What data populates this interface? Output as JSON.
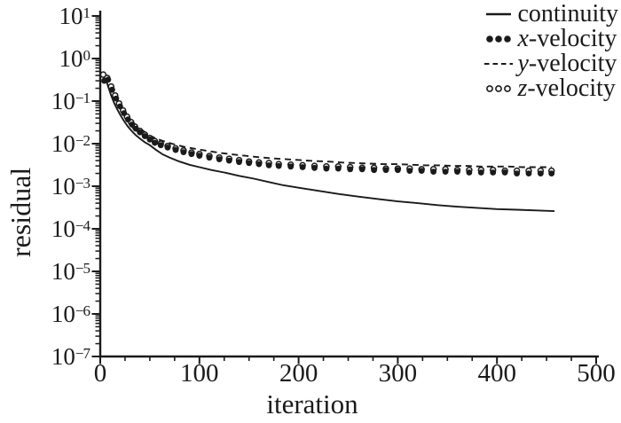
{
  "chart_data": {
    "type": "line",
    "title": "",
    "xlabel": "iteration",
    "ylabel": "residual",
    "grid": false,
    "x_axis": {
      "min": 0,
      "max": 500,
      "minor_tick_step": 25,
      "ticks": [
        {
          "value": 0,
          "label": "0"
        },
        {
          "value": 100,
          "label": "100"
        },
        {
          "value": 200,
          "label": "200"
        },
        {
          "value": 300,
          "label": "300"
        },
        {
          "value": 400,
          "label": "400"
        },
        {
          "value": 500,
          "label": "500"
        }
      ]
    },
    "y_axis": {
      "scale": "log",
      "base": "10",
      "min_exp": -7,
      "max_exp": 1,
      "ticks": [
        {
          "exp": 1,
          "label": "1"
        },
        {
          "exp": 0,
          "label": "0"
        },
        {
          "exp": -1,
          "label": "−1"
        },
        {
          "exp": -2,
          "label": "−2"
        },
        {
          "exp": -3,
          "label": "−3"
        },
        {
          "exp": -4,
          "label": "−4"
        },
        {
          "exp": -5,
          "label": "−5"
        },
        {
          "exp": -6,
          "label": "−6"
        },
        {
          "exp": -7,
          "label": "−7"
        }
      ]
    },
    "series": [
      {
        "id": "continuity",
        "style": "solid-line",
        "points": [
          [
            3,
            0.33
          ],
          [
            5,
            0.36
          ],
          [
            8,
            0.22
          ],
          [
            11,
            0.135
          ],
          [
            14,
            0.09
          ],
          [
            17,
            0.065
          ],
          [
            20,
            0.048
          ],
          [
            24,
            0.034
          ],
          [
            28,
            0.025
          ],
          [
            32,
            0.0195
          ],
          [
            36,
            0.0158
          ],
          [
            40,
            0.0132
          ],
          [
            45,
            0.0108
          ],
          [
            50,
            0.0092
          ],
          [
            56,
            0.0072
          ],
          [
            63,
            0.0056
          ],
          [
            70,
            0.0047
          ],
          [
            80,
            0.0038
          ],
          [
            90,
            0.0032
          ],
          [
            100,
            0.0028
          ],
          [
            112,
            0.0024
          ],
          [
            125,
            0.0021
          ],
          [
            140,
            0.00175
          ],
          [
            155,
            0.0015
          ],
          [
            170,
            0.00125
          ],
          [
            185,
            0.00105
          ],
          [
            200,
            0.00092
          ],
          [
            220,
            0.00078
          ],
          [
            240,
            0.00066
          ],
          [
            260,
            0.00057
          ],
          [
            280,
            0.0005
          ],
          [
            300,
            0.00044
          ],
          [
            320,
            0.0004
          ],
          [
            340,
            0.00036
          ],
          [
            360,
            0.00033
          ],
          [
            380,
            0.00031
          ],
          [
            400,
            0.00029
          ],
          [
            420,
            0.00028
          ],
          [
            440,
            0.00027
          ],
          [
            458,
            0.00026
          ]
        ]
      },
      {
        "id": "y-velocity",
        "style": "dashed-line",
        "points": [
          [
            3,
            0.34
          ],
          [
            8,
            0.29
          ],
          [
            13,
            0.165
          ],
          [
            18,
            0.098
          ],
          [
            23,
            0.063
          ],
          [
            28,
            0.044
          ],
          [
            33,
            0.032
          ],
          [
            38,
            0.0245
          ],
          [
            44,
            0.0195
          ],
          [
            50,
            0.0155
          ],
          [
            57,
            0.013
          ],
          [
            65,
            0.0112
          ],
          [
            74,
            0.0097
          ],
          [
            84,
            0.0085
          ],
          [
            95,
            0.0076
          ],
          [
            107,
            0.0068
          ],
          [
            120,
            0.0061
          ],
          [
            133,
            0.0056
          ],
          [
            146,
            0.0052
          ],
          [
            160,
            0.0048
          ],
          [
            174,
            0.0045
          ],
          [
            188,
            0.0043
          ],
          [
            202,
            0.0041
          ],
          [
            216,
            0.0039
          ],
          [
            230,
            0.0038
          ],
          [
            244,
            0.0036
          ],
          [
            258,
            0.0035
          ],
          [
            272,
            0.0034
          ],
          [
            286,
            0.0033
          ],
          [
            300,
            0.0033
          ],
          [
            314,
            0.0032
          ],
          [
            328,
            0.0031
          ],
          [
            342,
            0.0031
          ],
          [
            356,
            0.003
          ],
          [
            370,
            0.003
          ],
          [
            384,
            0.0029
          ],
          [
            398,
            0.0029
          ],
          [
            412,
            0.0029
          ],
          [
            426,
            0.0028
          ],
          [
            440,
            0.0028
          ],
          [
            455,
            0.0028
          ]
        ]
      },
      {
        "id": "z-velocity",
        "style": "open-circles",
        "points": [
          [
            3,
            0.42
          ],
          [
            7,
            0.35
          ],
          [
            11,
            0.22
          ],
          [
            15,
            0.135
          ],
          [
            19,
            0.088
          ],
          [
            23,
            0.06
          ],
          [
            27,
            0.043
          ],
          [
            31,
            0.032
          ],
          [
            35,
            0.025
          ],
          [
            40,
            0.02
          ],
          [
            45,
            0.0162
          ],
          [
            50,
            0.0135
          ],
          [
            55,
            0.0115
          ],
          [
            61,
            0.01
          ],
          [
            68,
            0.0088
          ],
          [
            76,
            0.0077
          ],
          [
            84,
            0.0069
          ],
          [
            92,
            0.0062
          ],
          [
            100,
            0.0057
          ],
          [
            110,
            0.0051
          ],
          [
            120,
            0.0047
          ],
          [
            130,
            0.0044
          ],
          [
            140,
            0.0041
          ],
          [
            150,
            0.0038
          ],
          [
            160,
            0.0036
          ],
          [
            170,
            0.0035
          ],
          [
            180,
            0.0033
          ],
          [
            192,
            0.0032
          ],
          [
            204,
            0.0031
          ],
          [
            216,
            0.003
          ],
          [
            228,
            0.0029
          ],
          [
            240,
            0.0029
          ],
          [
            252,
            0.0028
          ],
          [
            264,
            0.0027
          ],
          [
            276,
            0.0027
          ],
          [
            288,
            0.0026
          ],
          [
            300,
            0.0026
          ],
          [
            312,
            0.0026
          ],
          [
            324,
            0.0025
          ],
          [
            336,
            0.0025
          ],
          [
            348,
            0.0025
          ],
          [
            360,
            0.0024
          ],
          [
            372,
            0.0024
          ],
          [
            384,
            0.0024
          ],
          [
            396,
            0.0024
          ],
          [
            408,
            0.0023
          ],
          [
            420,
            0.0023
          ],
          [
            432,
            0.0023
          ],
          [
            444,
            0.0023
          ],
          [
            455,
            0.0023
          ]
        ]
      },
      {
        "id": "x-velocity",
        "style": "filled-dots",
        "points": [
          [
            4,
            0.3
          ],
          [
            8,
            0.32
          ],
          [
            12,
            0.185
          ],
          [
            16,
            0.115
          ],
          [
            20,
            0.075
          ],
          [
            24,
            0.052
          ],
          [
            28,
            0.037
          ],
          [
            32,
            0.028
          ],
          [
            36,
            0.0225
          ],
          [
            40,
            0.0185
          ],
          [
            45,
            0.015
          ],
          [
            50,
            0.0125
          ],
          [
            55,
            0.0105
          ],
          [
            61,
            0.0092
          ],
          [
            68,
            0.0081
          ],
          [
            76,
            0.0071
          ],
          [
            84,
            0.0063
          ],
          [
            92,
            0.0057
          ],
          [
            100,
            0.0052
          ],
          [
            110,
            0.0047
          ],
          [
            120,
            0.0043
          ],
          [
            130,
            0.004
          ],
          [
            140,
            0.0037
          ],
          [
            150,
            0.0035
          ],
          [
            160,
            0.0033
          ],
          [
            170,
            0.0031
          ],
          [
            180,
            0.003
          ],
          [
            192,
            0.0029
          ],
          [
            204,
            0.0028
          ],
          [
            216,
            0.0027
          ],
          [
            228,
            0.0026
          ],
          [
            240,
            0.0026
          ],
          [
            252,
            0.0025
          ],
          [
            264,
            0.0025
          ],
          [
            276,
            0.0024
          ],
          [
            288,
            0.0024
          ],
          [
            300,
            0.0024
          ],
          [
            312,
            0.0023
          ],
          [
            324,
            0.0023
          ],
          [
            336,
            0.0022
          ],
          [
            348,
            0.0022
          ],
          [
            360,
            0.0022
          ],
          [
            372,
            0.0021
          ],
          [
            384,
            0.0021
          ],
          [
            396,
            0.0021
          ],
          [
            408,
            0.0021
          ],
          [
            420,
            0.002
          ],
          [
            432,
            0.002
          ],
          [
            444,
            0.002
          ],
          [
            455,
            0.002
          ]
        ]
      }
    ],
    "legend": {
      "position": "top-right",
      "entries": [
        {
          "id": "continuity",
          "symbol": "solid-line",
          "label_italic": "",
          "label": "continuity"
        },
        {
          "id": "x-velocity",
          "symbol": "filled-dots",
          "label_italic": "x",
          "label": "-velocity"
        },
        {
          "id": "y-velocity",
          "symbol": "dashed-line",
          "label_italic": "y",
          "label": "-velocity"
        },
        {
          "id": "z-velocity",
          "symbol": "open-circles",
          "label_italic": "z",
          "label": "-velocity"
        }
      ]
    },
    "colors": {
      "ink": "#1a1a1a",
      "background": "#ffffff"
    }
  }
}
